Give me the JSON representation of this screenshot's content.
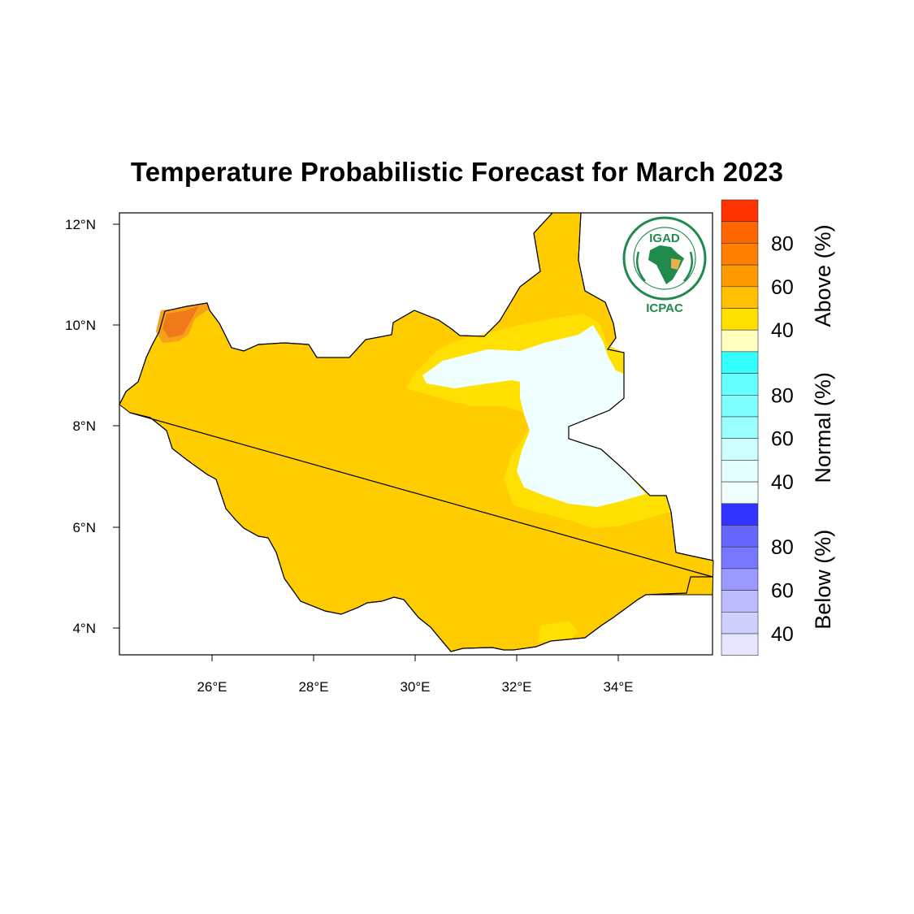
{
  "map": {
    "title": "Temperature Probabilistic Forecast for March 2023",
    "lat_labels": [
      "12°N",
      "10°N",
      "8°N",
      "6°N",
      "4°N"
    ],
    "lon_labels": [
      "26°E",
      "28°E",
      "30°E",
      "32°E",
      "34°E"
    ],
    "logo": {
      "org_top": "IGAD",
      "org_bottom": "ICPAC",
      "ring_text": "INTERGOVERNMENTAL AUTHORITY ON DEVELOPMENT"
    },
    "region_colors": {
      "above_40_50": "#ffcc00",
      "above_50_60": "#ffe000",
      "above_60_70": "#f7a11a",
      "above_70_80": "#f07a1a",
      "normal_35_40": "#effefe",
      "border": "#000000"
    }
  },
  "legend": {
    "categories": [
      {
        "name": "Above (%)",
        "ticks": [
          "80",
          "60",
          "40"
        ],
        "colors": [
          "#ff3300",
          "#ff6600",
          "#ff8000",
          "#ff9900",
          "#ffc000",
          "#ffe000",
          "#ffffc0"
        ]
      },
      {
        "name": "Normal (%)",
        "ticks": [
          "80",
          "60",
          "40"
        ],
        "colors": [
          "#33ffff",
          "#66ffff",
          "#80ffff",
          "#99ffff",
          "#ccffff",
          "#e6ffff",
          "#f0fffe"
        ]
      },
      {
        "name": "Below (%)",
        "ticks": [
          "80",
          "60",
          "40"
        ],
        "colors": [
          "#3333ff",
          "#6666ff",
          "#7777ff",
          "#9999ff",
          "#bbbbff",
          "#d0d0ff",
          "#e6e6ff"
        ]
      }
    ]
  }
}
